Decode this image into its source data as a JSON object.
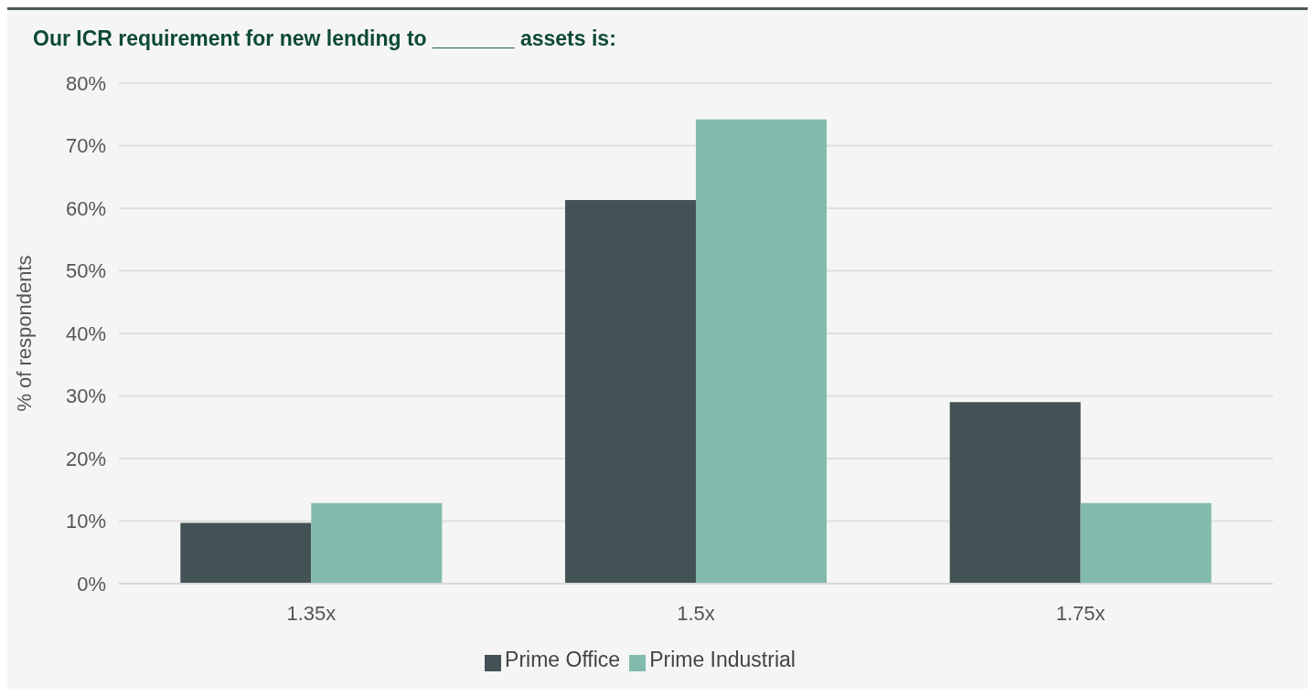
{
  "chart_data": {
    "type": "bar",
    "title": "Our ICR requirement for new lending to _______ assets is:",
    "ylabel": "% of respondents",
    "categories": [
      "1.35x",
      "1.5x",
      "1.75x"
    ],
    "series": [
      {
        "name": "Prime Office",
        "color": "#435254",
        "values": [
          9.7,
          61.3,
          29.0
        ]
      },
      {
        "name": "Prime Industrial",
        "color": "#82bbab",
        "values": [
          12.9,
          74.2,
          12.9
        ]
      }
    ],
    "ylim": [
      0,
      80
    ],
    "yticks": [
      {
        "value": 0,
        "label": "0%"
      },
      {
        "value": 10,
        "label": "10%"
      },
      {
        "value": 20,
        "label": "20%"
      },
      {
        "value": 30,
        "label": "30%"
      },
      {
        "value": 40,
        "label": "40%"
      },
      {
        "value": 50,
        "label": "50%"
      },
      {
        "value": 60,
        "label": "60%"
      },
      {
        "value": 70,
        "label": "70%"
      },
      {
        "value": 80,
        "label": "80%"
      }
    ],
    "grid": "y",
    "legend": "bottom"
  }
}
